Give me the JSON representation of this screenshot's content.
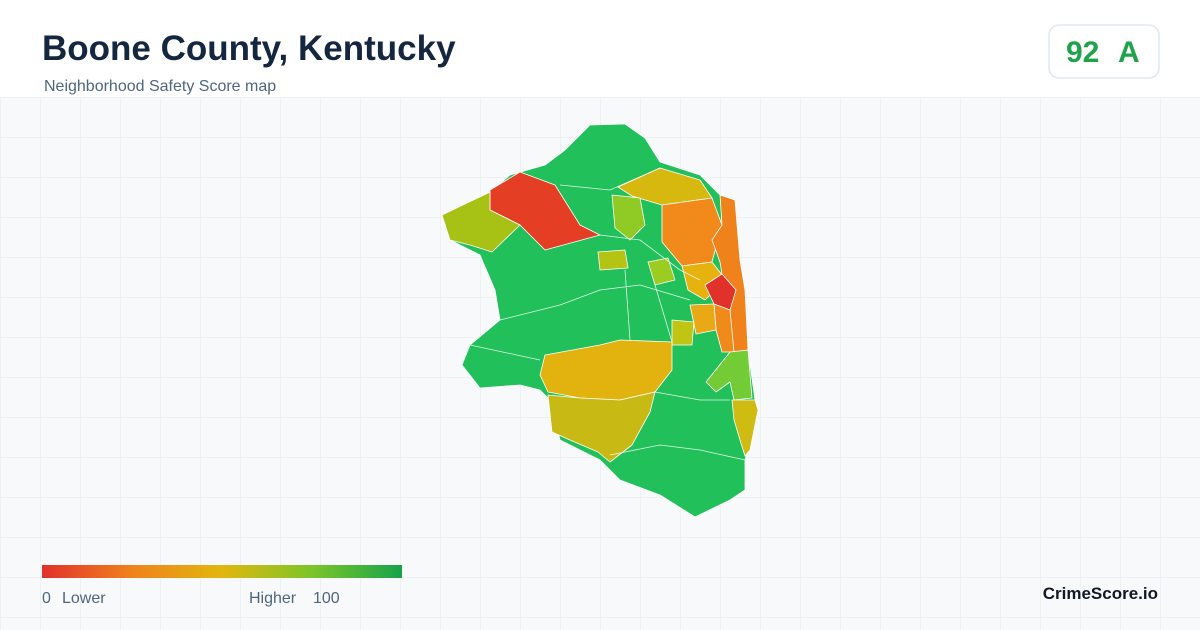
{
  "header": {
    "title": "Boone County, Kentucky",
    "subtitle": "Neighborhood Safety Score map"
  },
  "badge": {
    "score": "92",
    "grade": "A"
  },
  "legend": {
    "min": "0",
    "min_label": "Lower",
    "max_label": "Higher",
    "max": "100"
  },
  "footer": {
    "brand": "CrimeScore.io"
  }
}
